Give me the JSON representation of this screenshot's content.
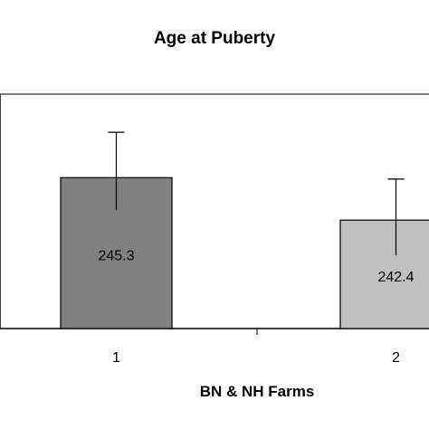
{
  "chart_data": {
    "type": "bar",
    "title": "Age at Puberty",
    "xlabel": "BN & NH Farms",
    "ylabel": "",
    "categories": [
      "1",
      "2"
    ],
    "values": [
      245.3,
      242.4
    ],
    "data_labels": [
      "245.3",
      "242.4"
    ],
    "error_bars": [
      {
        "upper": 248.4,
        "lower": 243.1
      },
      {
        "upper": 245.2,
        "lower": 240.0
      }
    ],
    "ylim": [
      235.0,
      251.0
    ],
    "grid": false,
    "legend": "none",
    "bar_colors": [
      "#808080",
      "#c0c0c0"
    ]
  }
}
